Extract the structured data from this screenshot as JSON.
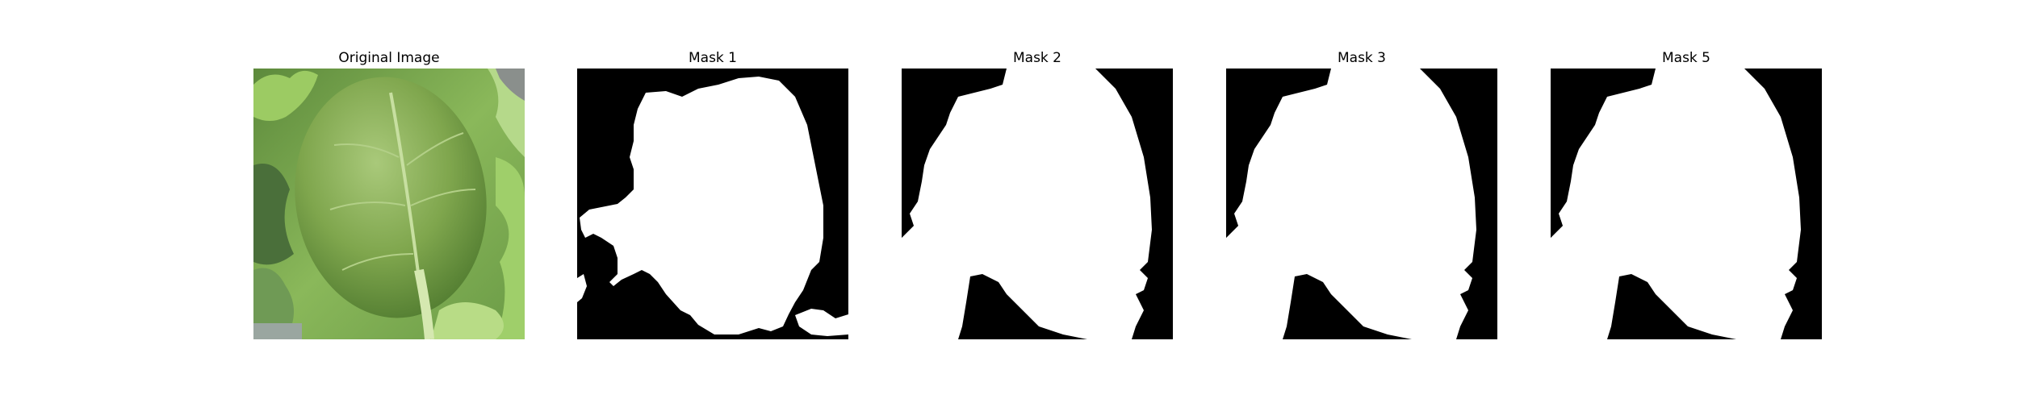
{
  "panels": [
    {
      "title": "Original Image"
    },
    {
      "title": "Mask 1"
    },
    {
      "title": "Mask 2"
    },
    {
      "title": "Mask 3"
    },
    {
      "title": "Mask 5"
    }
  ],
  "colors": {
    "mask_background": "#000000",
    "mask_foreground": "#ffffff",
    "leaf_green": "#6f9a46",
    "lettuce_green": "#8fbf5a"
  }
}
